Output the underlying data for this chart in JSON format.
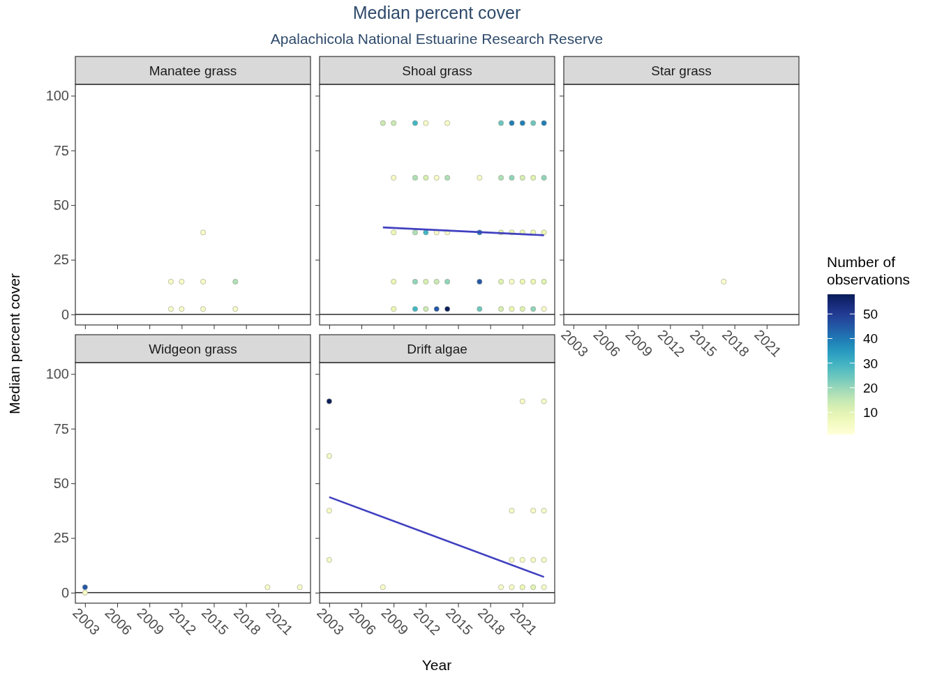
{
  "chart_data": [
    {
      "type": "other",
      "title": "Median percent cover",
      "subtitle": "Apalachicola National Estuarine Research Reserve",
      "xlabel": "Year",
      "ylabel": "Median percent cover"
    },
    {
      "type": "scatter",
      "title": "Manatee grass",
      "xlim": [
        2002.1,
        2024
      ],
      "ylim": [
        -4.8,
        105.2
      ],
      "xticks": [
        2003,
        2006,
        2009,
        2012,
        2015,
        2018,
        2021
      ],
      "yticks": [
        0,
        25,
        50,
        75,
        100
      ],
      "tick_labels": "y",
      "ref_lines": [
        {
          "axis": "y",
          "value": 0
        }
      ],
      "marker": "circle",
      "series": [
        {
          "x": [
            2011,
            2011,
            2012,
            2012,
            2014,
            2014,
            2014,
            2017,
            2017
          ],
          "values": [
            15,
            2.5,
            15,
            2.5,
            37.5,
            15,
            2.5,
            15,
            2.5
          ],
          "colors": [
            "#f7fcc8",
            "#f7fcc8",
            "#f7fcc8",
            "#f7fcc8",
            "#f7fcc8",
            "#f7fcc8",
            "#f7fcc8",
            "#aedfb7",
            "#f7fcc8"
          ]
        }
      ]
    },
    {
      "type": "scatter",
      "title": "Shoal grass",
      "xlim": [
        2002.1,
        2024
      ],
      "ylim": [
        -4.8,
        105.2
      ],
      "xticks": [
        2003,
        2006,
        2009,
        2012,
        2015,
        2018,
        2021
      ],
      "yticks": [
        0,
        25,
        50,
        75,
        100
      ],
      "tick_labels": false,
      "ref_lines": [
        {
          "axis": "y",
          "value": 0
        }
      ],
      "marker": "circle",
      "series": [
        {
          "x": [
            2008,
            2009,
            2011,
            2012,
            2014,
            2019,
            2020,
            2021,
            2022,
            2023,
            2009,
            2011,
            2012,
            2013,
            2014,
            2017,
            2019,
            2020,
            2021,
            2022,
            2023,
            2009,
            2011,
            2012,
            2013,
            2014,
            2017,
            2019,
            2020,
            2021,
            2022,
            2023,
            2009,
            2011,
            2012,
            2013,
            2014,
            2017,
            2019,
            2020,
            2021,
            2022,
            2023,
            2009,
            2011,
            2012,
            2013,
            2014,
            2017,
            2019,
            2020,
            2021,
            2022,
            2023
          ],
          "values": [
            87.5,
            87.5,
            87.5,
            87.5,
            87.5,
            87.5,
            87.5,
            87.5,
            87.5,
            87.5,
            62.5,
            62.5,
            62.5,
            62.5,
            62.5,
            62.5,
            62.5,
            62.5,
            62.5,
            62.5,
            62.5,
            37.5,
            37.5,
            37.5,
            37.5,
            37.5,
            37.5,
            37.5,
            37.5,
            37.5,
            37.5,
            37.5,
            15,
            15,
            15,
            15,
            15,
            15,
            15,
            15,
            15,
            15,
            15,
            2.5,
            2.5,
            2.5,
            2.5,
            2.5,
            2.5,
            2.5,
            2.5,
            2.5,
            2.5,
            2.5
          ],
          "colors": [
            "#cae9b4",
            "#cae9b4",
            "#41b6c4",
            "#f7fcc8",
            "#f7fcc8",
            "#6cc5be",
            "#1f7db5",
            "#1f7db5",
            "#6cc5be",
            "#1f7db5",
            "#f7fcc8",
            "#aedfb7",
            "#d6efb3",
            "#f7fcc8",
            "#aedfb7",
            "#f7fcc8",
            "#aedfb7",
            "#8fd4ba",
            "#d6efb3",
            "#e0f3b2",
            "#8fd4ba",
            "#eef8b4",
            "#aedfb7",
            "#41b6c4",
            "#f7fcc8",
            "#f7fcc8",
            "#1f7db5",
            "#e0f3b2",
            "#eef8b4",
            "#eef8b4",
            "#eef8b4",
            "#eef8b4",
            "#eef8b4",
            "#8fd4ba",
            "#d6efb3",
            "#cae9b4",
            "#8fd4ba",
            "#2257a5",
            "#e0f3b2",
            "#f7fcc8",
            "#eef8b4",
            "#eef8b4",
            "#e0f3b2",
            "#eef8b4",
            "#41b6c4",
            "#cae9b4",
            "#2257a5",
            "#081d58",
            "#6cc5be",
            "#d6efb3",
            "#eef8b4",
            "#e0f3b2",
            "#8fd4ba",
            "#f7fcc8"
          ]
        },
        {
          "type": "line",
          "color": "#4040c0",
          "marker": "none",
          "x": [
            2008,
            2023
          ],
          "values": [
            39.8,
            36.2
          ]
        }
      ]
    },
    {
      "type": "scatter",
      "title": "Star grass",
      "xlim": [
        2002.1,
        2024
      ],
      "ylim": [
        -4.8,
        105.2
      ],
      "xticks": [
        2003,
        2006,
        2009,
        2012,
        2015,
        2018,
        2021
      ],
      "yticks": [
        0,
        25,
        50,
        75,
        100
      ],
      "tick_labels": "x",
      "ref_lines": [
        {
          "axis": "y",
          "value": 0
        }
      ],
      "marker": "circle",
      "clabel": "Number of observations",
      "clim": [
        1,
        58
      ],
      "cticks": [
        10,
        20,
        30,
        40,
        50
      ],
      "series": [
        {
          "x": [
            2017
          ],
          "values": [
            15
          ],
          "cvalues": [
            3
          ]
        }
      ]
    },
    {
      "type": "scatter",
      "title": "Widgeon grass",
      "xlim": [
        2002.1,
        2024
      ],
      "ylim": [
        -4.8,
        105.2
      ],
      "xticks": [
        2003,
        2006,
        2009,
        2012,
        2015,
        2018,
        2021
      ],
      "yticks": [
        0,
        25,
        50,
        75,
        100
      ],
      "ref_lines": [
        {
          "axis": "y",
          "value": 0
        }
      ],
      "marker": "circle",
      "series": [
        {
          "x": [
            2003,
            2003,
            2020,
            2023
          ],
          "values": [
            0,
            2.5,
            2.5,
            2.5
          ],
          "colors": [
            "#f7fcc8",
            "#2257a5",
            "#f7fcc8",
            "#f7fcc8"
          ]
        }
      ]
    },
    {
      "type": "scatter",
      "title": "Drift algae",
      "xlim": [
        2002.1,
        2024
      ],
      "ylim": [
        -4.8,
        105.2
      ],
      "xticks": [
        2003,
        2006,
        2009,
        2012,
        2015,
        2018,
        2021
      ],
      "yticks": [
        0,
        25,
        50,
        75,
        100
      ],
      "tick_labels": "x",
      "ref_lines": [
        {
          "axis": "y",
          "value": 0
        }
      ],
      "marker": "circle",
      "series": [
        {
          "x": [
            2003,
            2003,
            2003,
            2003,
            2008,
            2021,
            2023,
            2020,
            2022,
            2023,
            2020,
            2021,
            2022,
            2023,
            2019,
            2020,
            2021,
            2022,
            2023
          ],
          "values": [
            87.5,
            62.5,
            37.5,
            15,
            2.5,
            87.5,
            87.5,
            37.5,
            37.5,
            37.5,
            15,
            15,
            15,
            15,
            2.5,
            2.5,
            2.5,
            2.5,
            2.5
          ],
          "colors": [
            "#081d58",
            "#f7fcc8",
            "#f7fcc8",
            "#f7fcc8",
            "#f7fcc8",
            "#f7fcc8",
            "#f7fcc8",
            "#f7fcc8",
            "#f7fcc8",
            "#f7fcc8",
            "#f7fcc8",
            "#f7fcc8",
            "#f7fcc8",
            "#f7fcc8",
            "#f7fcc8",
            "#f7fcc8",
            "#eef8b4",
            "#e0f3b2",
            "#f7fcc8"
          ]
        },
        {
          "type": "line",
          "color": "#4040c0",
          "marker": "none",
          "x": [
            2003,
            2023
          ],
          "values": [
            43.7,
            7.2
          ]
        }
      ]
    }
  ]
}
